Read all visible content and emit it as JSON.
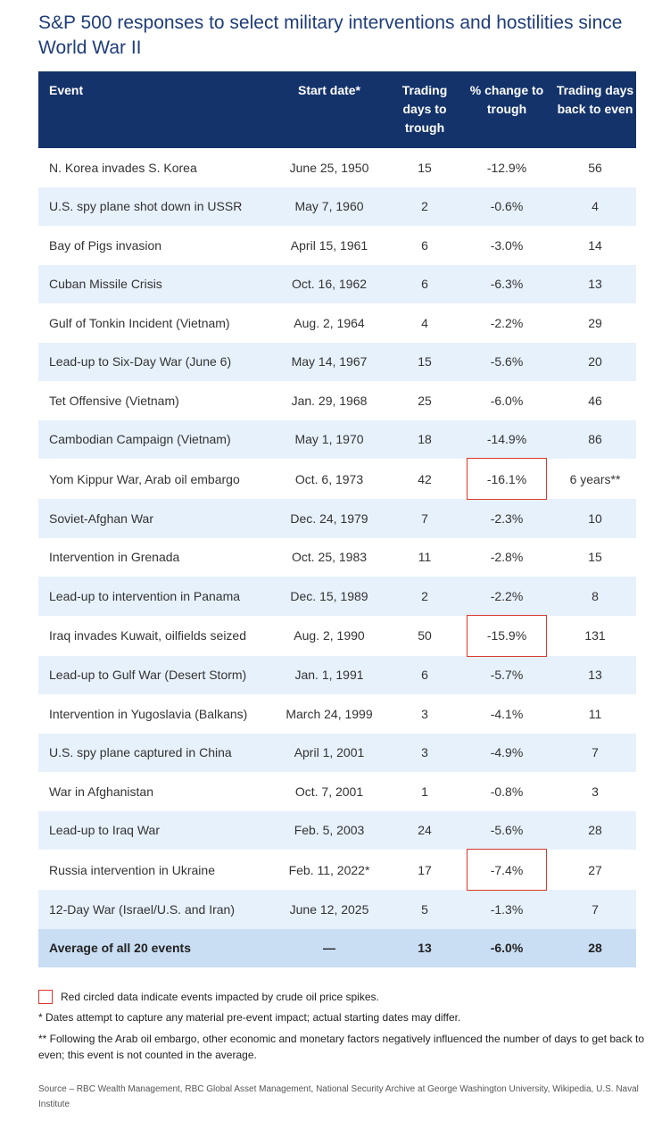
{
  "title": "S&P 500 responses to select military interventions and hostilities since World War II",
  "table": {
    "headers": {
      "event": "Event",
      "start_date": "Start date*",
      "days_to_trough": "Trading days to trough",
      "pct_change": "% change to trough",
      "days_back": "Trading days back to even"
    },
    "rows": [
      {
        "event": "N. Korea invades S. Korea",
        "start": "June 25, 1950",
        "days": "15",
        "pct": "-12.9%",
        "back": "56"
      },
      {
        "event": "U.S. spy plane shot down in USSR",
        "start": "May 7, 1960",
        "days": "2",
        "pct": "-0.6%",
        "back": "4"
      },
      {
        "event": "Bay of Pigs invasion",
        "start": "April 15, 1961",
        "days": "6",
        "pct": "-3.0%",
        "back": "14"
      },
      {
        "event": "Cuban Missile Crisis",
        "start": "Oct. 16, 1962",
        "days": "6",
        "pct": "-6.3%",
        "back": "13"
      },
      {
        "event": "Gulf of Tonkin Incident (Vietnam)",
        "start": "Aug. 2, 1964",
        "days": "4",
        "pct": "-2.2%",
        "back": "29"
      },
      {
        "event": "Lead-up to Six-Day War (June 6)",
        "start": "May 14, 1967",
        "days": "15",
        "pct": "-5.6%",
        "back": "20"
      },
      {
        "event": "Tet Offensive (Vietnam)",
        "start": "Jan. 29, 1968",
        "days": "25",
        "pct": "-6.0%",
        "back": "46"
      },
      {
        "event": "Cambodian Campaign (Vietnam)",
        "start": "May 1, 1970",
        "days": "18",
        "pct": "-14.9%",
        "back": "86"
      },
      {
        "event": "Yom Kippur War, Arab oil embargo",
        "start": "Oct. 6, 1973",
        "days": "42",
        "pct": "-16.1%",
        "back": "6 years**",
        "oil_spike": true
      },
      {
        "event": "Soviet-Afghan War",
        "start": "Dec. 24, 1979",
        "days": "7",
        "pct": "-2.3%",
        "back": "10"
      },
      {
        "event": "Intervention in Grenada",
        "start": "Oct. 25, 1983",
        "days": "11",
        "pct": "-2.8%",
        "back": "15"
      },
      {
        "event": "Lead-up to intervention in Panama",
        "start": "Dec. 15, 1989",
        "days": "2",
        "pct": "-2.2%",
        "back": "8"
      },
      {
        "event": "Iraq invades Kuwait, oilfields seized",
        "start": "Aug. 2, 1990",
        "days": "50",
        "pct": "-15.9%",
        "back": "131",
        "oil_spike": true
      },
      {
        "event": "Lead-up to Gulf War (Desert Storm)",
        "start": "Jan. 1, 1991",
        "days": "6",
        "pct": "-5.7%",
        "back": "13"
      },
      {
        "event": "Intervention in Yugoslavia (Balkans)",
        "start": "March 24, 1999",
        "days": "3",
        "pct": "-4.1%",
        "back": "11"
      },
      {
        "event": "U.S. spy plane captured in China",
        "start": "April 1, 2001",
        "days": "3",
        "pct": "-4.9%",
        "back": "7"
      },
      {
        "event": "War in Afghanistan",
        "start": "Oct. 7, 2001",
        "days": "1",
        "pct": "-0.8%",
        "back": "3"
      },
      {
        "event": "Lead-up to Iraq War",
        "start": "Feb. 5, 2003",
        "days": "24",
        "pct": "-5.6%",
        "back": "28"
      },
      {
        "event": "Russia intervention in Ukraine",
        "start": "Feb. 11, 2022*",
        "days": "17",
        "pct": "-7.4%",
        "back": "27",
        "oil_spike": true
      },
      {
        "event": "12-Day War (Israel/U.S. and Iran)",
        "start": "June 12, 2025",
        "days": "5",
        "pct": "-1.3%",
        "back": "7"
      }
    ],
    "average": {
      "event": "Average of all 20 events",
      "start": "—",
      "days": "13",
      "pct": "-6.0%",
      "back": "28"
    }
  },
  "legend": "Red circled data indicate events impacted by crude oil price spikes.",
  "notes": [
    "* Dates attempt to capture any material pre-event impact; actual starting dates may differ.",
    "** Following the Arab oil embargo, other economic and monetary factors negatively influenced the number of days to get back to even; this event is not counted in the average."
  ],
  "source": "Source – RBC Wealth Management, RBC Global Asset Management, National Security Archive at George Washington University, Wikipedia, U.S. Naval Institute",
  "colors": {
    "header_bg": "#14336b",
    "title": "#1f3d7a",
    "row_alt": "#e7f1fb",
    "avg_row": "#c9def3",
    "highlight_box": "#d9372c"
  }
}
